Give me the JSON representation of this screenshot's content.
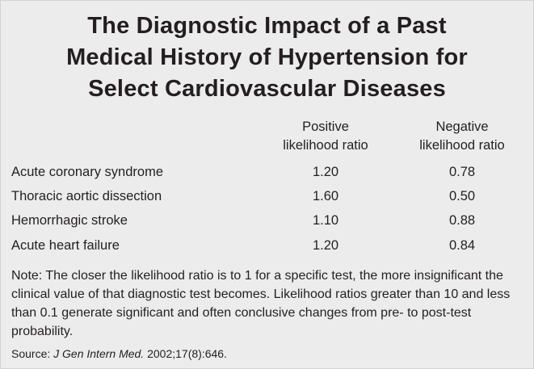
{
  "title": {
    "line1": "The Diagnostic Impact of a Past",
    "line2": "Medical History of Hypertension for",
    "line3": "Select Cardiovascular Diseases"
  },
  "table": {
    "headers": {
      "positive": [
        "Positive",
        "likelihood ratio"
      ],
      "negative": [
        "Negative",
        "likelihood ratio"
      ]
    },
    "rows": [
      {
        "condition": "Acute coronary syndrome",
        "positive": "1.20",
        "negative": "0.78"
      },
      {
        "condition": "Thoracic aortic dissection",
        "positive": "1.60",
        "negative": "0.50"
      },
      {
        "condition": "Hemorrhagic stroke",
        "positive": "1.10",
        "negative": "0.88"
      },
      {
        "condition": "Acute heart failure",
        "positive": "1.20",
        "negative": "0.84"
      }
    ]
  },
  "note": "Note: The closer the likelihood ratio is to 1 for a specific test, the more insignificant the clinical value of that diagnostic test becomes. Likelihood ratios greater than 10 and less than 0.1 generate significant and often conclusive changes from pre- to post-test probability.",
  "source": {
    "prefix": "Source: ",
    "journal": "J Gen Intern Med.",
    "citation": " 2002;17(8):646."
  }
}
